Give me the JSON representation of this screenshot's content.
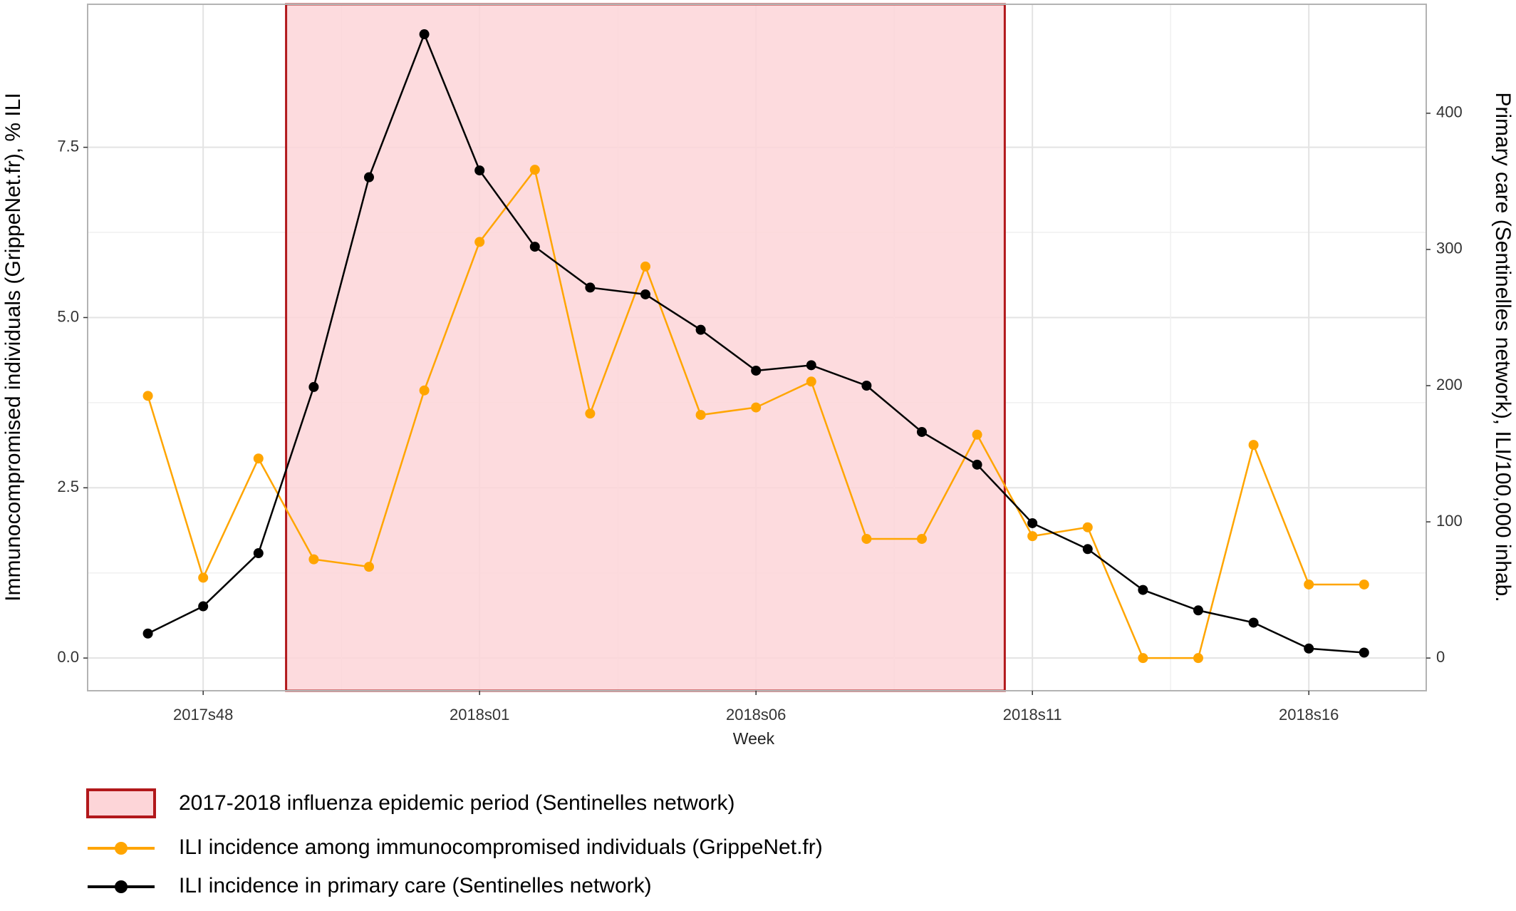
{
  "chart_data": {
    "type": "line",
    "x_label": "Week",
    "y_label": "Immunocompromised individuals (GrippeNet.fr), % ILI",
    "y2_label": "Primary care (Sentinelles network), ILI/100,000 inhab.",
    "categories": [
      null,
      "2017s48",
      null,
      null,
      null,
      null,
      "2018s01",
      null,
      null,
      null,
      null,
      "2018s06",
      null,
      null,
      null,
      null,
      "2018s11",
      null,
      null,
      null,
      null,
      "2018s16",
      null
    ],
    "ylim": [
      -0.48,
      9.6
    ],
    "yticks": [
      {
        "value": 0,
        "label": "0.0"
      },
      2.5,
      {
        "value": 5,
        "label": "5.0"
      },
      7.5
    ],
    "y2lim": [
      -24,
      480
    ],
    "y2ticks": [
      0,
      100,
      200,
      300,
      400
    ],
    "grid": true,
    "epidemic_period": {
      "name": "2017-2018 influenza epidemic period (Sentinelles network)",
      "start": 3,
      "end": 15,
      "color": "#fdd5d8",
      "edge_color": "#b2181b"
    },
    "series": [
      {
        "name": "ILI incidence among immunocompromised individuals (GrippeNet.fr)",
        "color": "#ffa500",
        "values": [
          3.85,
          1.18,
          2.93,
          1.45,
          1.34,
          3.93,
          6.11,
          7.17,
          3.59,
          5.75,
          3.57,
          3.68,
          4.06,
          1.75,
          1.75,
          3.28,
          1.79,
          1.92,
          0,
          0,
          3.13,
          1.08,
          1.08
        ]
      },
      {
        "name": "ILI incidence in primary care (Sentinelles network)",
        "color": "#000000",
        "axis": "y2",
        "values": [
          18,
          38,
          77,
          199,
          353,
          458,
          358,
          302,
          272,
          267,
          241,
          211,
          215,
          200,
          166,
          142,
          99,
          80,
          50,
          35,
          26,
          7,
          4
        ]
      }
    ]
  }
}
